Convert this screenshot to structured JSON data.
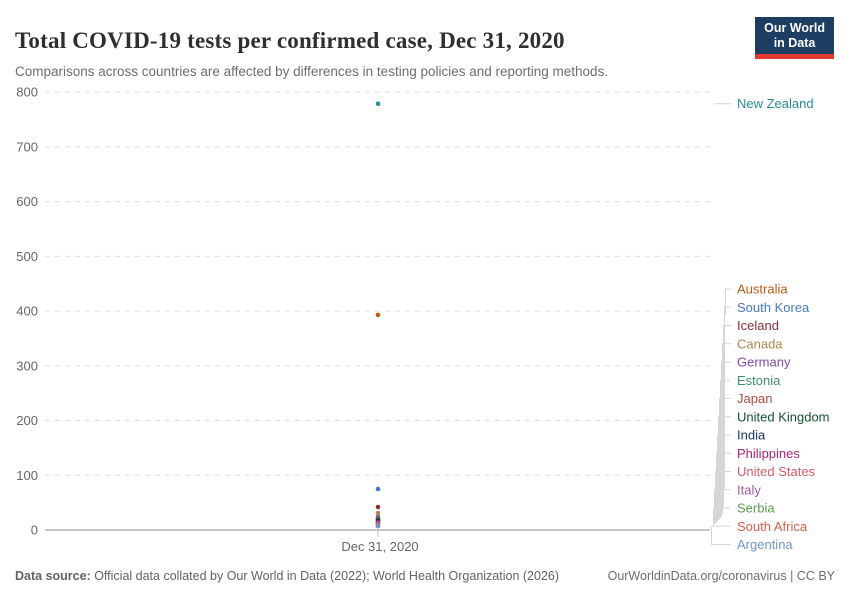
{
  "header": {
    "title": "Total COVID-19 tests per confirmed case, Dec 31, 2020",
    "subtitle": "Comparisons across countries are affected by differences in testing policies and reporting methods.",
    "logo": {
      "line1": "Our World",
      "line2": "in Data",
      "bg_color": "#1D3D63",
      "stripe_color": "#E0372E"
    }
  },
  "chart_data": {
    "type": "scatter",
    "title": "Total COVID-19 tests per confirmed case, Dec 31, 2020",
    "x_tick_label": "Dec 31, 2020",
    "ylabel": "",
    "ylim": [
      0,
      800
    ],
    "yticks": [
      0,
      100,
      200,
      300,
      400,
      500,
      600,
      700,
      800
    ],
    "grid": "horizontal dashed",
    "legend_position": "right-edge country labels with leader lines",
    "axis_colors": {
      "gridline": "#dedede",
      "zero_line": "#8f8f8f",
      "tick_text": "#666666",
      "leader_line": "#d6d6d6",
      "x_tick_mark": "#bbbbbb"
    },
    "series": [
      {
        "name": "New Zealand",
        "value": 779,
        "color": "#2A8C9B"
      },
      {
        "name": "Australia",
        "value": 393,
        "color": "#BE5915"
      },
      {
        "name": "South Korea",
        "value": 75,
        "color": "#4679C1"
      },
      {
        "name": "Iceland",
        "value": 42,
        "color": "#883039"
      },
      {
        "name": "Canada",
        "value": 31,
        "color": "#B3874F"
      },
      {
        "name": "Germany",
        "value": 24,
        "color": "#7D4BA9"
      },
      {
        "name": "Estonia",
        "value": 22,
        "color": "#3E8E6C"
      },
      {
        "name": "Japan",
        "value": 20,
        "color": "#B24A3C"
      },
      {
        "name": "United Kingdom",
        "value": 18,
        "color": "#12532D"
      },
      {
        "name": "India",
        "value": 16,
        "color": "#1A3663"
      },
      {
        "name": "Philippines",
        "value": 14,
        "color": "#A82479"
      },
      {
        "name": "United States",
        "value": 12,
        "color": "#D75C6A"
      },
      {
        "name": "Italy",
        "value": 11,
        "color": "#A159AE"
      },
      {
        "name": "Serbia",
        "value": 9,
        "color": "#5A9C4D"
      },
      {
        "name": "South Africa",
        "value": 8,
        "color": "#DD5F4B"
      },
      {
        "name": "Argentina",
        "value": 7,
        "color": "#7295C7"
      }
    ]
  },
  "footer": {
    "datasource_label": "Data source:",
    "datasource_text": " Official data collated by Our World in Data (2022); World Health Organization (2026)",
    "link_license": "OurWorldinData.org/coronavirus | CC BY"
  }
}
